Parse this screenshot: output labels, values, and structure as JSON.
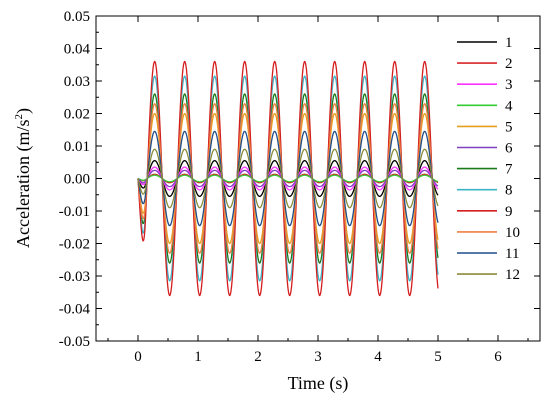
{
  "chart_data": {
    "type": "line",
    "xlabel": "Time (s)",
    "ylabel_main": "Acceleration (m/s",
    "ylabel_sup": "2",
    "ylabel_tail": ")",
    "xlim": [
      -0.7,
      6.7
    ],
    "ylim": [
      -0.05,
      0.05
    ],
    "x_ticks": [
      "0",
      "1",
      "2",
      "3",
      "4",
      "5",
      "6"
    ],
    "y_ticks": [
      "-0.05",
      "-0.04",
      "-0.03",
      "-0.02",
      "-0.01",
      "0.00",
      "0.01",
      "0.02",
      "0.03",
      "0.04",
      "0.05"
    ],
    "grid": false,
    "legend_position": "right",
    "signal_frequency_hz": 2,
    "x_range": [
      0,
      5
    ],
    "series": [
      {
        "name": "1",
        "color": "#000000",
        "amplitude": 0.0055
      },
      {
        "name": "2",
        "color": "#d62728",
        "amplitude": 0.0013
      },
      {
        "name": "3",
        "color": "#ff33ff",
        "amplitude": 0.0035
      },
      {
        "name": "4",
        "color": "#33cc33",
        "amplitude": 0.001
      },
      {
        "name": "5",
        "color": "#e6a020",
        "amplitude": 0.02
      },
      {
        "name": "6",
        "color": "#7f3fbf",
        "amplitude": 0.0025
      },
      {
        "name": "7",
        "color": "#1a7a1a",
        "amplitude": 0.026
      },
      {
        "name": "8",
        "color": "#3cb4c8",
        "amplitude": 0.0315
      },
      {
        "name": "9",
        "color": "#d41e1e",
        "amplitude": 0.036
      },
      {
        "name": "10",
        "color": "#f08040",
        "amplitude": 0.023
      },
      {
        "name": "11",
        "color": "#1f4e8c",
        "amplitude": 0.0145
      },
      {
        "name": "12",
        "color": "#8c8c3a",
        "amplitude": 0.009
      }
    ]
  }
}
